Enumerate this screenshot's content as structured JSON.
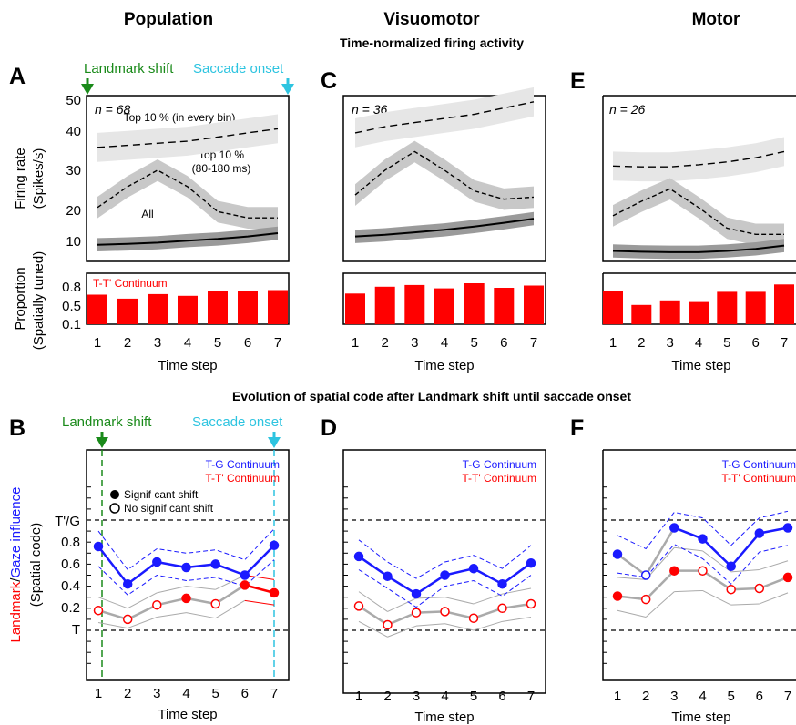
{
  "figure": {
    "column_titles": [
      "Population",
      "Visuomotor",
      "Motor"
    ],
    "top_section_title": "Time-normalized firing activity",
    "bottom_section_title": "Evolution of spatial code after Landmark shift until saccade onset",
    "landmark_shift_label": "Landmark shift",
    "saccade_onset_label": "Saccade onset",
    "colors": {
      "green": "#1a8a1a",
      "cyan": "#2ec4e0",
      "red": "#ff0000",
      "blue": "#1a1aff",
      "gray": "#aaaaaa"
    }
  },
  "firing": {
    "ylabel_line1": "Firing rate",
    "ylabel_line2": "(Spikes/s)",
    "yticks": [
      "50",
      "40",
      "30",
      "20",
      "10"
    ],
    "annotations": {
      "top_every": "Top 10 % (in every bin)",
      "top_window_1": "Top 10 %",
      "top_window_2": "(80-180 ms)",
      "all": "All"
    }
  },
  "proportion": {
    "ylabel_line1": "Proportion",
    "ylabel_line2": "(Spatially tuned)",
    "yticks": [
      "0.8",
      "0.5",
      "0.1"
    ],
    "legend": "T-T' Continuum",
    "xlabel": "Time step",
    "xticks": [
      "1",
      "2",
      "3",
      "4",
      "5",
      "6",
      "7"
    ]
  },
  "spatial": {
    "ylabel_red": "Landmark",
    "ylabel_sep": "/",
    "ylabel_blue": "Gaze influence",
    "ylabel_line2": "(Spatial code)",
    "yticks": [
      "T'/G",
      "0.8",
      "0.6",
      "0.4",
      "0.2",
      "T"
    ],
    "legend_tg": "T-G Continuum",
    "legend_tt": "T-T' Continuum",
    "legend_sig": "Signif cant shift",
    "legend_nonsig": "No signif cant shift",
    "xlabel": "Time step",
    "xticks": [
      "1",
      "2",
      "3",
      "4",
      "5",
      "6",
      "7"
    ]
  },
  "chart_data": [
    {
      "panel": "A",
      "type": "line",
      "title": "Population",
      "n_label": "n = 68",
      "x": [
        1,
        2,
        3,
        4,
        5,
        6,
        7
      ],
      "ylim": [
        8,
        50
      ],
      "series": [
        {
          "name": "Top 10 % (in every bin)",
          "values": [
            37.5,
            38,
            38.5,
            39,
            40,
            41,
            42
          ]
        },
        {
          "name": "Top 10 % (80-180 ms)",
          "values": [
            23,
            28,
            32,
            28,
            22,
            20.5,
            20.5
          ]
        },
        {
          "name": "All",
          "values": [
            14,
            14.2,
            14.5,
            15,
            15.4,
            16,
            16.8
          ]
        }
      ]
    },
    {
      "panel": "A",
      "type": "bar",
      "legend": "T-T' Continuum",
      "categories": [
        "1",
        "2",
        "3",
        "4",
        "5",
        "6",
        "7"
      ],
      "ylim": [
        0.1,
        0.9
      ],
      "values": [
        0.62,
        0.55,
        0.63,
        0.6,
        0.69,
        0.68,
        0.7
      ]
    },
    {
      "panel": "C",
      "type": "line",
      "title": "Visuomotor",
      "n_label": "n = 36",
      "x": [
        1,
        2,
        3,
        4,
        5,
        6,
        7
      ],
      "ylim": [
        8,
        50
      ],
      "series": [
        {
          "name": "Top 10 % (in every bin)",
          "values": [
            41,
            42.5,
            43.5,
            44.5,
            45.5,
            47,
            48.5
          ]
        },
        {
          "name": "Top 10 % (80-180 ms)",
          "values": [
            26,
            32,
            36.5,
            32,
            27,
            25,
            25.5
          ]
        },
        {
          "name": "All",
          "values": [
            16,
            16.4,
            17,
            17.6,
            18.4,
            19.3,
            20.3
          ]
        }
      ]
    },
    {
      "panel": "C",
      "type": "bar",
      "categories": [
        "1",
        "2",
        "3",
        "4",
        "5",
        "6",
        "7"
      ],
      "ylim": [
        0.1,
        0.9
      ],
      "values": [
        0.64,
        0.76,
        0.79,
        0.73,
        0.82,
        0.74,
        0.78
      ]
    },
    {
      "panel": "E",
      "type": "line",
      "title": "Motor",
      "n_label": "n = 26",
      "x": [
        1,
        2,
        3,
        4,
        5,
        6,
        7
      ],
      "ylim": [
        8,
        50
      ],
      "series": [
        {
          "name": "Top 10 % (in every bin)",
          "values": [
            33,
            32.8,
            32.8,
            33.3,
            34,
            35,
            36.5
          ]
        },
        {
          "name": "Top 10 % (80-180 ms)",
          "values": [
            21,
            24.5,
            27.5,
            23,
            18,
            16.5,
            16.5
          ]
        },
        {
          "name": "All",
          "values": [
            12.5,
            12.3,
            12.2,
            12.2,
            12.5,
            13,
            13.8
          ]
        }
      ]
    },
    {
      "panel": "E",
      "type": "bar",
      "categories": [
        "1",
        "2",
        "3",
        "4",
        "5",
        "6",
        "7"
      ],
      "ylim": [
        0.1,
        0.9
      ],
      "values": [
        0.68,
        0.44,
        0.52,
        0.49,
        0.67,
        0.67,
        0.8
      ]
    },
    {
      "panel": "B",
      "type": "line",
      "x": [
        1,
        2,
        3,
        4,
        5,
        6,
        7
      ],
      "ylim": [
        -0.3,
        1.3
      ],
      "series": [
        {
          "name": "T-G Continuum",
          "values": [
            0.76,
            0.42,
            0.62,
            0.57,
            0.6,
            0.5,
            0.77
          ],
          "upper": [
            0.9,
            0.55,
            0.74,
            0.7,
            0.73,
            0.64,
            0.92
          ],
          "lower": [
            0.58,
            0.32,
            0.5,
            0.45,
            0.48,
            0.4,
            0.64
          ],
          "significant": [
            true,
            true,
            true,
            true,
            true,
            true,
            true
          ]
        },
        {
          "name": "T-T' Continuum",
          "values": [
            0.18,
            0.1,
            0.23,
            0.29,
            0.24,
            0.41,
            0.34
          ],
          "upper": [
            0.3,
            0.2,
            0.34,
            0.4,
            0.37,
            0.5,
            0.46
          ],
          "lower": [
            0.07,
            0.02,
            0.12,
            0.16,
            0.11,
            0.27,
            0.23
          ],
          "significant": [
            false,
            false,
            false,
            true,
            false,
            true,
            true
          ]
        }
      ]
    },
    {
      "panel": "D",
      "type": "line",
      "x": [
        1,
        2,
        3,
        4,
        5,
        6,
        7
      ],
      "ylim": [
        -0.3,
        1.3
      ],
      "series": [
        {
          "name": "T-G Continuum",
          "values": [
            0.67,
            0.49,
            0.33,
            0.5,
            0.56,
            0.42,
            0.61
          ],
          "upper": [
            0.82,
            0.62,
            0.47,
            0.62,
            0.68,
            0.56,
            0.77
          ],
          "lower": [
            0.55,
            0.38,
            0.21,
            0.4,
            0.45,
            0.31,
            0.5
          ],
          "significant": [
            true,
            true,
            true,
            true,
            true,
            true,
            true
          ]
        },
        {
          "name": "T-T' Continuum",
          "values": [
            0.22,
            0.05,
            0.16,
            0.17,
            0.11,
            0.2,
            0.24
          ],
          "upper": [
            0.35,
            0.17,
            0.29,
            0.3,
            0.24,
            0.33,
            0.38
          ],
          "lower": [
            0.08,
            -0.06,
            0.04,
            0.06,
            0.0,
            0.08,
            0.12
          ],
          "significant": [
            false,
            false,
            false,
            false,
            false,
            false,
            false
          ]
        }
      ]
    },
    {
      "panel": "F",
      "type": "line",
      "x": [
        1,
        2,
        3,
        4,
        5,
        6,
        7
      ],
      "ylim": [
        -0.3,
        1.3
      ],
      "series": [
        {
          "name": "T-G Continuum",
          "values": [
            0.69,
            0.5,
            0.93,
            0.83,
            0.58,
            0.88,
            0.93
          ],
          "upper": [
            0.86,
            0.74,
            1.07,
            1.02,
            0.77,
            1.02,
            1.08
          ],
          "lower": [
            0.52,
            0.48,
            0.78,
            0.65,
            0.42,
            0.71,
            0.77
          ],
          "significant": [
            true,
            false,
            true,
            true,
            true,
            true,
            true
          ]
        },
        {
          "name": "T-T' Continuum",
          "values": [
            0.31,
            0.28,
            0.54,
            0.54,
            0.37,
            0.38,
            0.48
          ],
          "upper": [
            0.48,
            0.46,
            0.75,
            0.72,
            0.53,
            0.55,
            0.63
          ],
          "lower": [
            0.18,
            0.12,
            0.35,
            0.36,
            0.23,
            0.24,
            0.34
          ],
          "significant": [
            true,
            false,
            true,
            false,
            false,
            false,
            true
          ]
        }
      ]
    }
  ]
}
